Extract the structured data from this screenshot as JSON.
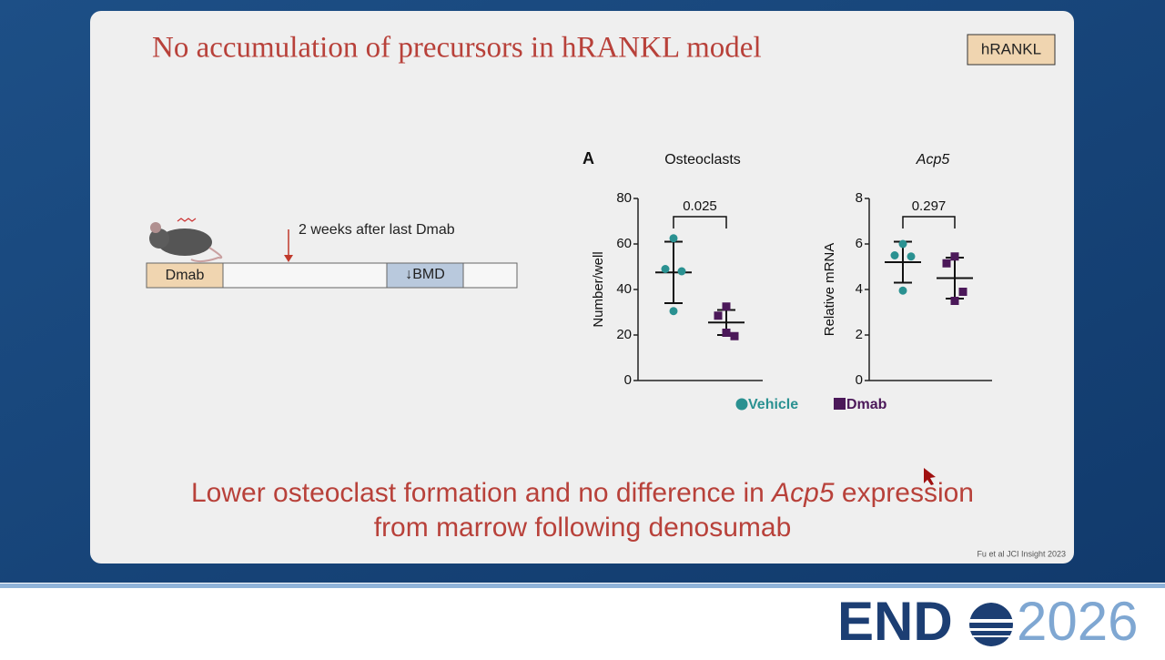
{
  "slide": {
    "title": "No accumulation of precursors in hRANKL model",
    "badge": "hRANKL",
    "timeline": {
      "arrow_label": "2 weeks after last Dmab",
      "start_box": "Dmab",
      "end_box": "↓BMD"
    },
    "panel_label": "A",
    "conclusion": {
      "line1_before": "Lower osteoclast formation and no difference in ",
      "line1_italic": "Acp5",
      "line1_after": " expression",
      "line2": "from marrow following denosumab"
    },
    "citation": "Fu et al JCI Insight 2023",
    "logo": {
      "left": "END",
      "right": "2026"
    }
  },
  "legend": [
    {
      "name": "Vehicle",
      "color": "#2a9191",
      "marker": "circle"
    },
    {
      "name": "Dmab",
      "color": "#4b1859",
      "marker": "square"
    }
  ],
  "chart_data": [
    {
      "type": "dotplot",
      "title": "Osteoclasts",
      "title_italic": false,
      "y_label": "Number/well",
      "annotation": "0.025",
      "ylim": [
        0,
        80
      ],
      "yticks": [
        0,
        20,
        40,
        60,
        80
      ],
      "series": [
        {
          "values": [
            62.5,
            49,
            48,
            30.5
          ],
          "mean": 47.5,
          "sd": 13.5
        },
        {
          "values": [
            32.5,
            28.5,
            19.5,
            21
          ],
          "mean": 25.5,
          "sd": 5.5
        }
      ]
    },
    {
      "type": "dotplot",
      "title": "Acp5",
      "title_italic": true,
      "y_label": "Relative mRNA",
      "annotation": "0.297",
      "ylim": [
        0,
        8
      ],
      "yticks": [
        0,
        2,
        4,
        6,
        8
      ],
      "series": [
        {
          "values": [
            6.0,
            5.5,
            5.45,
            3.95
          ],
          "mean": 5.2,
          "sd": 0.9
        },
        {
          "values": [
            5.45,
            5.15,
            3.9,
            3.5
          ],
          "mean": 4.5,
          "sd": 0.9
        }
      ]
    }
  ]
}
